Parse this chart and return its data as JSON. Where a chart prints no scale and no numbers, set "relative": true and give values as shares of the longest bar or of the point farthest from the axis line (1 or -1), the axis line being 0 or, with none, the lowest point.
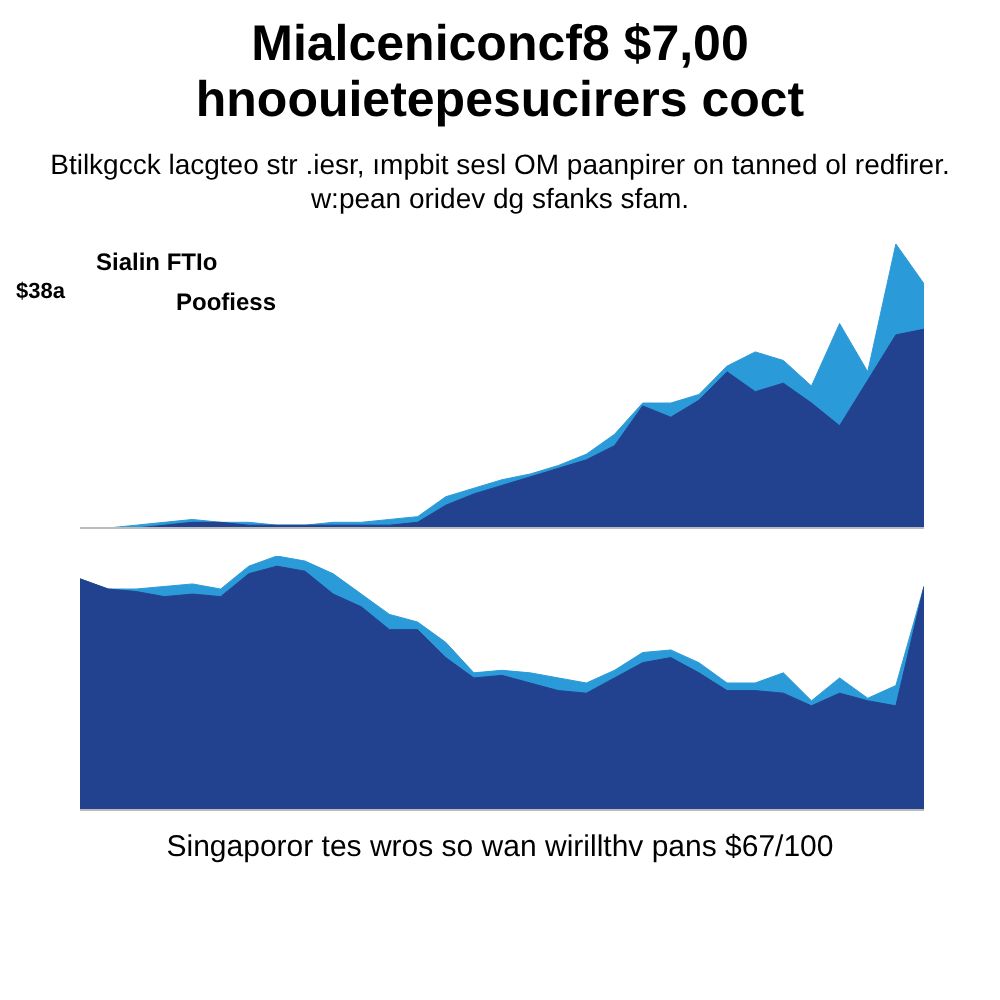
{
  "chart_data": [
    {
      "type": "area",
      "title": "Mialceniconcf8 $7,00 hnoouietepesucirers coct",
      "subtitle": "Btilkgcck lacgteo str .iesr, ımpbit sesl OM paanpirer on tanned ol redfirer. w:pean oridev dg sfanks sfam.",
      "annotations": [
        "$38a",
        "Sialin FTIo",
        "Poofiess"
      ],
      "relative": true,
      "tick_labels": false,
      "categories": [
        null,
        null,
        null,
        null,
        null,
        null,
        null,
        null,
        null,
        null,
        null,
        null,
        null,
        null,
        null,
        null,
        null,
        null,
        null,
        null,
        null,
        null,
        null,
        null,
        null,
        null,
        null,
        null,
        null,
        null,
        null
      ],
      "series": [
        {
          "color": "#2b9ad8",
          "values": [
            0,
            0,
            0.01,
            0.02,
            0.03,
            0.02,
            0.02,
            0.01,
            0.01,
            0.02,
            0.02,
            0.03,
            0.04,
            0.11,
            0.14,
            0.17,
            0.19,
            0.22,
            0.26,
            0.33,
            0.44,
            0.44,
            0.47,
            0.57,
            0.62,
            0.59,
            0.5,
            0.72,
            0.55,
            1,
            0.86
          ]
        },
        {
          "color": "#22428f",
          "values": [
            0,
            0,
            0,
            0.01,
            0.02,
            0.02,
            0.01,
            0.01,
            0.01,
            0.01,
            0.01,
            0.01,
            0.02,
            0.08,
            0.12,
            0.15,
            0.18,
            0.21,
            0.24,
            0.29,
            0.43,
            0.39,
            0.45,
            0.55,
            0.48,
            0.51,
            0.44,
            0.36,
            0.52,
            0.68,
            0.7
          ]
        }
      ]
    },
    {
      "type": "area",
      "annotations": [
        "Singaporor tes wros so wan wirillthv pans $67/100"
      ],
      "relative": true,
      "tick_labels": false,
      "categories": [
        null,
        null,
        null,
        null,
        null,
        null,
        null,
        null,
        null,
        null,
        null,
        null,
        null,
        null,
        null,
        null,
        null,
        null,
        null,
        null,
        null,
        null,
        null,
        null,
        null,
        null,
        null,
        null,
        null,
        null,
        null
      ],
      "series": [
        {
          "color": "#2b9ad8",
          "values": [
            0.91,
            0.87,
            0.87,
            0.88,
            0.89,
            0.87,
            0.96,
            1,
            0.98,
            0.93,
            0.85,
            0.77,
            0.74,
            0.66,
            0.54,
            0.55,
            0.54,
            0.52,
            0.5,
            0.55,
            0.62,
            0.63,
            0.58,
            0.5,
            0.5,
            0.54,
            0.43,
            0.52,
            0.44,
            0.49,
            0.88
          ]
        },
        {
          "color": "#22428f",
          "values": [
            0.91,
            0.87,
            0.86,
            0.84,
            0.85,
            0.84,
            0.93,
            0.96,
            0.94,
            0.85,
            0.8,
            0.71,
            0.71,
            0.6,
            0.52,
            0.53,
            0.5,
            0.47,
            0.46,
            0.52,
            0.58,
            0.6,
            0.54,
            0.47,
            0.47,
            0.46,
            0.41,
            0.46,
            0.43,
            0.41,
            0.88
          ]
        }
      ]
    }
  ]
}
